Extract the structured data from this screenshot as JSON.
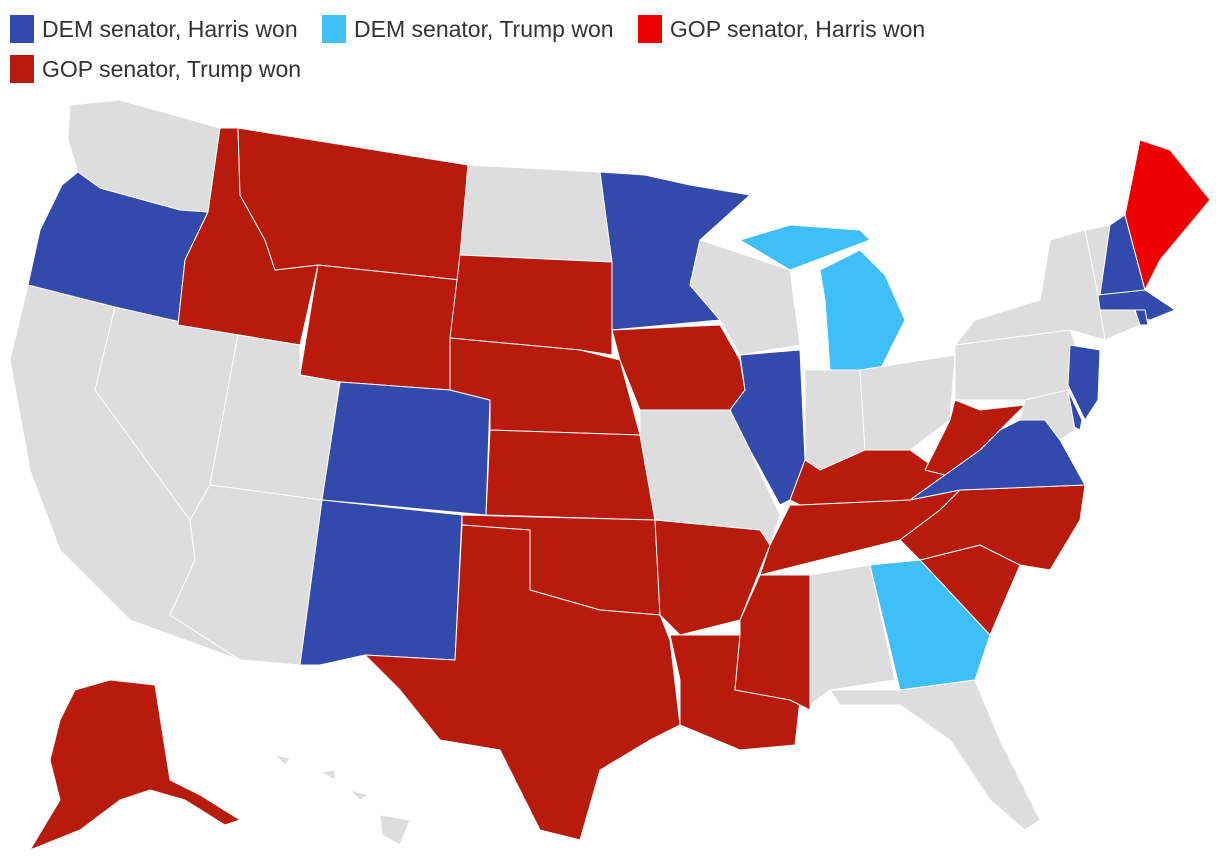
{
  "legend": [
    {
      "label": "DEM senator, Harris won",
      "color": "#334aad"
    },
    {
      "label": "DEM senator, Trump won",
      "color": "#3fbff7"
    },
    {
      "label": "GOP senator, Harris won",
      "color": "#ee0000"
    },
    {
      "label": "GOP senator, Trump won",
      "color": "#b81a0c"
    }
  ],
  "no_data_color": "#dddddd",
  "states": [
    {
      "id": "WA",
      "category": null
    },
    {
      "id": "OR",
      "category": 0
    },
    {
      "id": "CA",
      "category": null
    },
    {
      "id": "NV",
      "category": null
    },
    {
      "id": "ID",
      "category": 3
    },
    {
      "id": "MT",
      "category": 3
    },
    {
      "id": "WY",
      "category": 3
    },
    {
      "id": "UT",
      "category": null
    },
    {
      "id": "CO",
      "category": 0
    },
    {
      "id": "AZ",
      "category": null
    },
    {
      "id": "NM",
      "category": 0
    },
    {
      "id": "ND",
      "category": null
    },
    {
      "id": "SD",
      "category": 3
    },
    {
      "id": "NE",
      "category": 3
    },
    {
      "id": "KS",
      "category": 3
    },
    {
      "id": "OK",
      "category": 3
    },
    {
      "id": "TX",
      "category": 3
    },
    {
      "id": "MN",
      "category": 0
    },
    {
      "id": "IA",
      "category": 3
    },
    {
      "id": "MO",
      "category": null
    },
    {
      "id": "AR",
      "category": 3
    },
    {
      "id": "LA",
      "category": 3
    },
    {
      "id": "WI",
      "category": null
    },
    {
      "id": "IL",
      "category": 0
    },
    {
      "id": "MI",
      "category": 1
    },
    {
      "id": "IN",
      "category": null
    },
    {
      "id": "OH",
      "category": null
    },
    {
      "id": "KY",
      "category": 3
    },
    {
      "id": "TN",
      "category": 3
    },
    {
      "id": "MS",
      "category": 3
    },
    {
      "id": "AL",
      "category": null
    },
    {
      "id": "GA",
      "category": 1
    },
    {
      "id": "FL",
      "category": null
    },
    {
      "id": "SC",
      "category": 3
    },
    {
      "id": "NC",
      "category": 3
    },
    {
      "id": "VA",
      "category": 0
    },
    {
      "id": "WV",
      "category": 3
    },
    {
      "id": "PA",
      "category": null
    },
    {
      "id": "NY",
      "category": null
    },
    {
      "id": "VT",
      "category": null
    },
    {
      "id": "NH",
      "category": 0
    },
    {
      "id": "ME",
      "category": 2
    },
    {
      "id": "MA",
      "category": 0
    },
    {
      "id": "CT",
      "category": null
    },
    {
      "id": "RI",
      "category": 0
    },
    {
      "id": "NJ",
      "category": 0
    },
    {
      "id": "DE",
      "category": 0
    },
    {
      "id": "MD",
      "category": null
    },
    {
      "id": "AK",
      "category": 3
    },
    {
      "id": "HI",
      "category": null
    }
  ]
}
